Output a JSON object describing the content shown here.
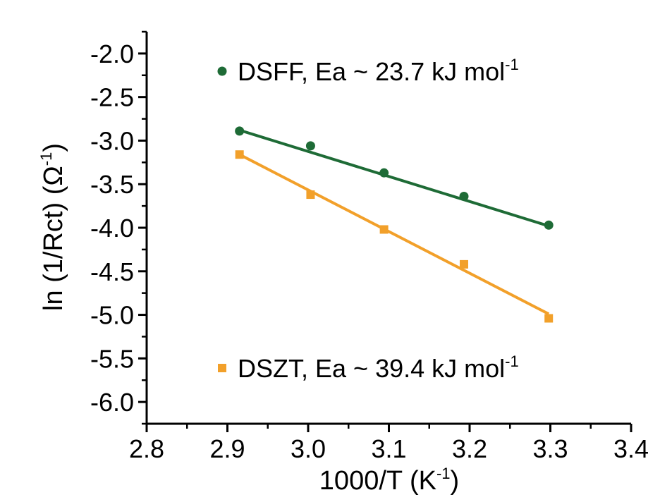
{
  "chart_data": {
    "type": "scatter",
    "title": "",
    "xlabel": {
      "main": "1000/T (K",
      "sup": "-1",
      "end": ")"
    },
    "ylabel": {
      "main": "ln (1/Rct) (Ω",
      "sup": "-1",
      "end": ")"
    },
    "xlim": [
      2.8,
      3.4
    ],
    "ylim": [
      -6.25,
      -1.75
    ],
    "xticks": [
      2.8,
      2.9,
      3.0,
      3.1,
      3.2,
      3.3,
      3.4
    ],
    "xtick_labels": [
      "2.8",
      "2.9",
      "3.0",
      "3.1",
      "3.2",
      "3.3",
      "3.4"
    ],
    "yticks": [
      -2.0,
      -2.5,
      -3.0,
      -3.5,
      -4.0,
      -4.5,
      -5.0,
      -5.5,
      -6.0
    ],
    "ytick_labels": [
      "-2.0",
      "-2.5",
      "-3.0",
      "-3.5",
      "-4.0",
      "-4.5",
      "-5.0",
      "-5.5",
      "-6.0"
    ],
    "grid": false,
    "series": [
      {
        "name": "DSFF, Ea ~ 23.7 kJ mol",
        "name_sup": "-1",
        "marker": "circle",
        "color": "#1e6b36",
        "x": [
          2.915,
          3.003,
          3.094,
          3.193,
          3.298
        ],
        "y": [
          -2.89,
          -3.06,
          -3.37,
          -3.64,
          -3.97
        ],
        "fit": {
          "x": [
            2.915,
            3.298
          ],
          "y": [
            -2.88,
            -3.98
          ]
        },
        "legend_position": "top-right"
      },
      {
        "name": "DSZT, Ea ~ 39.4 kJ mol",
        "name_sup": "-1",
        "marker": "square",
        "color": "#f2a02a",
        "x": [
          2.915,
          3.003,
          3.094,
          3.193,
          3.298
        ],
        "y": [
          -3.16,
          -3.62,
          -4.02,
          -4.42,
          -5.04
        ],
        "fit": {
          "x": [
            2.915,
            3.298
          ],
          "y": [
            -3.16,
            -4.99
          ]
        },
        "legend_position": "bottom-right"
      }
    ]
  }
}
